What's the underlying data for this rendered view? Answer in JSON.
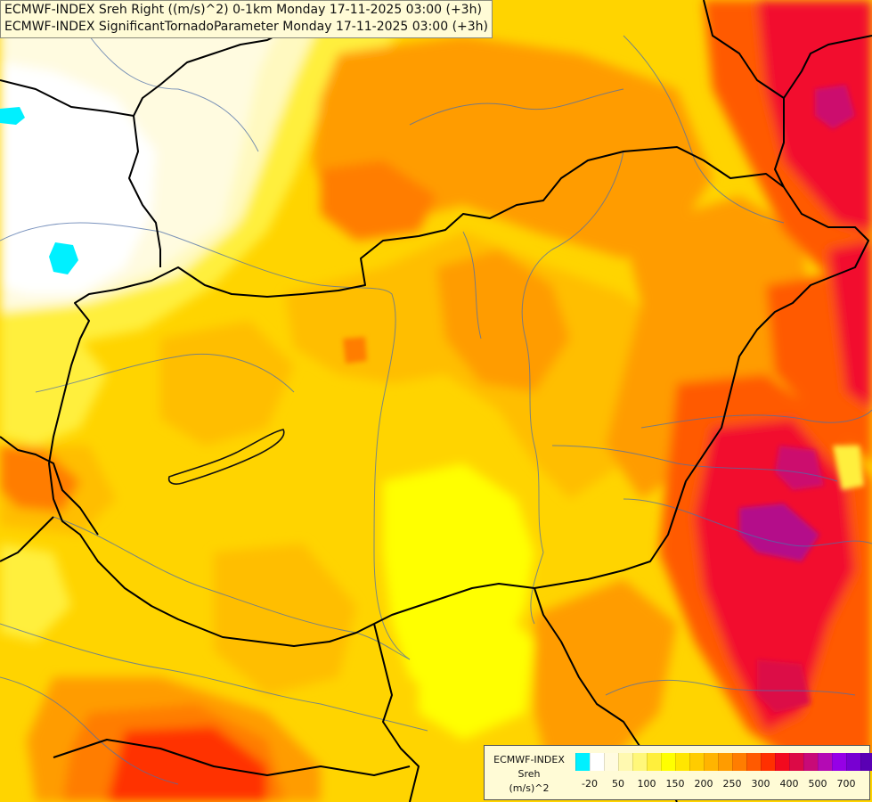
{
  "title_lines": [
    "ECMWF-INDEX Sreh Right ((m/s)^2) 0-1km Monday 17-11-2025 03:00 (+3h)",
    "ECMWF-INDEX SignificantTornadoParameter Monday 17-11-2025 03:00 (+3h)"
  ],
  "legend": {
    "line1": "ECMWF-INDEX",
    "line2": "Sreh",
    "line3": "(m/s)^2",
    "colors": [
      "#00f0ff",
      "#ffffff",
      "#fffbe0",
      "#fff9b0",
      "#fff77a",
      "#ffef3c",
      "#ffff00",
      "#ffe600",
      "#ffcc00",
      "#ffb400",
      "#ff9c00",
      "#ff7d00",
      "#ff5a00",
      "#ff3000",
      "#f20a1e",
      "#dc0a46",
      "#c80a78",
      "#b40ab4",
      "#9600e6",
      "#7800d2",
      "#5a00b4",
      "#2d0096",
      "#00008c"
    ],
    "ticks": [
      "-20",
      "50",
      "100",
      "150",
      "200",
      "250",
      "300",
      "400",
      "500",
      "700"
    ]
  },
  "map": {
    "field_colors": {
      "pale": "#fffbe0",
      "light": "#fff9c0",
      "yellow": "#ffef3c",
      "bright": "#ffff00",
      "gold": "#ffd400",
      "amber": "#ffbe00",
      "orange": "#ff9c00",
      "dorange": "#ff7d00",
      "red": "#ff3000",
      "crimson": "#f20a2e",
      "magenta": "#cc0a6e",
      "cyan": "#00f0ff"
    }
  }
}
